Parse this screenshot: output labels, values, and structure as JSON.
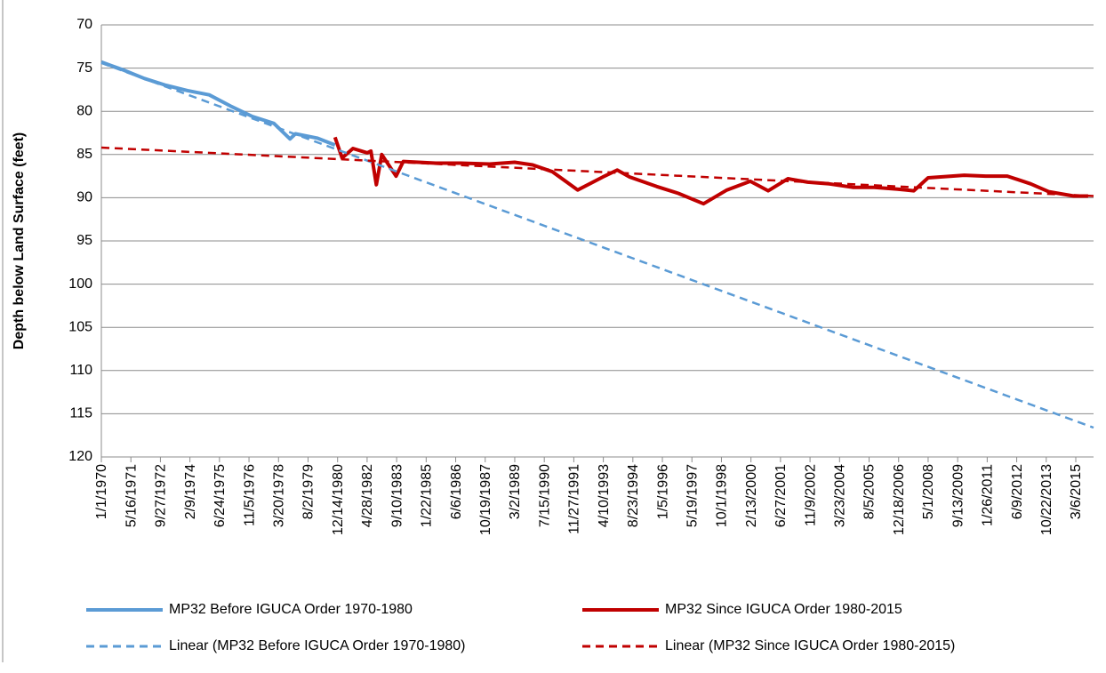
{
  "chart_data": {
    "type": "line",
    "y_title": "Depth below Land Surface (feet)",
    "ylim": [
      70,
      120
    ],
    "yticks": [
      70,
      75,
      80,
      85,
      90,
      95,
      100,
      105,
      110,
      115,
      120
    ],
    "y_reversed": true,
    "grid": true,
    "xlim": [
      "1/1/1970",
      "1/1/2016"
    ],
    "xticks": [
      "1/1/1970",
      "5/16/1971",
      "9/27/1972",
      "2/9/1974",
      "6/24/1975",
      "11/5/1976",
      "3/20/1978",
      "8/2/1979",
      "12/14/1980",
      "4/28/1982",
      "9/10/1983",
      "1/22/1985",
      "6/6/1986",
      "10/19/1987",
      "3/2/1989",
      "7/15/1990",
      "11/27/1991",
      "4/10/1993",
      "8/23/1994",
      "1/5/1996",
      "5/19/1997",
      "10/1/1998",
      "2/13/2000",
      "6/27/2001",
      "11/9/2002",
      "3/23/2004",
      "8/5/2005",
      "12/18/2006",
      "5/1/2008",
      "9/13/2009",
      "1/26/2011",
      "6/9/2012",
      "10/22/2013",
      "3/6/2015"
    ],
    "series": [
      {
        "name": "MP32 Before IGUCA Order 1970-1980",
        "color": "#5b9bd5",
        "dash": false,
        "x": [
          "1/1/1970",
          "1/1/1971",
          "1/1/1972",
          "1/1/1973",
          "1/1/1974",
          "1/1/1975",
          "1/1/1976",
          "1/1/1977",
          "1/1/1978",
          "10/1/1978",
          "1/1/1979",
          "1/1/1980",
          "11/1/1980"
        ],
        "values": [
          74.3,
          75.2,
          76.2,
          77.0,
          77.6,
          78.1,
          79.4,
          80.6,
          81.4,
          83.2,
          82.6,
          83.1,
          83.9
        ]
      },
      {
        "name": "MP32 Since IGUCA Order 1980-2015",
        "color": "#c00000",
        "dash": false,
        "x": [
          "11/1/1980",
          "3/1/1981",
          "9/1/1981",
          "5/1/1982",
          "7/1/1982",
          "10/1/1982",
          "1/1/1983",
          "9/1/1983",
          "1/1/1984",
          "7/1/1985",
          "9/1/1986",
          "1/1/1988",
          "3/1/1989",
          "1/1/1990",
          "12/1/1990",
          "2/1/1992",
          "4/1/1993",
          "12/1/1993",
          "7/1/1994",
          "10/1/1995",
          "10/1/1996",
          "12/1/1997",
          "1/1/1999",
          "2/1/2000",
          "12/1/2000",
          "11/1/2001",
          "10/1/2002",
          "10/1/2003",
          "11/1/2004",
          "11/1/2005",
          "12/1/2006",
          "9/1/2007",
          "5/1/2008",
          "1/1/2010",
          "1/1/2011",
          "1/1/2012",
          "2/1/2013",
          "12/1/2013",
          "2/1/2015",
          "10/1/2015"
        ],
        "values": [
          83.0,
          85.4,
          84.3,
          84.8,
          84.6,
          88.5,
          85.0,
          87.5,
          85.8,
          86.0,
          86.0,
          86.1,
          85.9,
          86.2,
          87.0,
          89.1,
          87.6,
          86.8,
          87.6,
          88.7,
          89.5,
          90.7,
          89.1,
          88.1,
          89.2,
          87.8,
          88.2,
          88.4,
          88.8,
          88.8,
          89.0,
          89.2,
          87.7,
          87.4,
          87.5,
          87.5,
          88.4,
          89.3,
          89.8,
          89.8
        ]
      },
      {
        "name": "Linear (MP32 Before IGUCA Order 1970-1980)",
        "color": "#5b9bd5",
        "dash": true,
        "x": [
          "1/1/1970",
          "1/1/2016"
        ],
        "values": [
          74.4,
          116.6
        ]
      },
      {
        "name": "Linear (MP32 Since IGUCA Order 1980-2015)",
        "color": "#c00000",
        "dash": true,
        "x": [
          "1/1/1970",
          "1/1/2016"
        ],
        "values": [
          84.2,
          89.8
        ]
      }
    ],
    "legend": "bottom"
  }
}
